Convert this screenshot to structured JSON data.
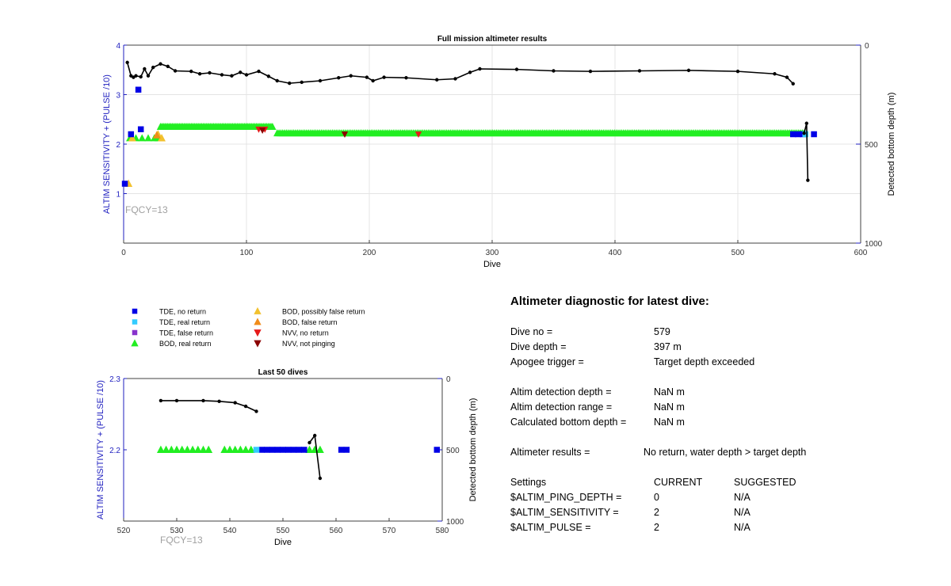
{
  "colors": {
    "tde_no_return": "#0000e6",
    "tde_real_return": "#33ccff",
    "tde_false_return": "#8833cc",
    "bod_real_return": "#22ee22",
    "bod_possibly_false": "#f2c12e",
    "bod_false": "#f08c1a",
    "nvv_no_return": "#e61a1a",
    "nvv_not_pinging": "#8b0000",
    "depth_line": "#000000",
    "axis_left": "#1f1fbf",
    "fqcy_text": "#a0a0a0"
  },
  "legend": {
    "items": [
      {
        "label": "TDE, no return",
        "marker": "square",
        "color_key": "tde_no_return"
      },
      {
        "label": "TDE, real return",
        "marker": "square",
        "color_key": "tde_real_return"
      },
      {
        "label": "TDE, false return",
        "marker": "square",
        "color_key": "tde_false_return"
      },
      {
        "label": "BOD, real return",
        "marker": "triangle-up",
        "color_key": "bod_real_return"
      },
      {
        "label": "BOD, possibly false return",
        "marker": "triangle-up",
        "color_key": "bod_possibly_false"
      },
      {
        "label": "BOD, false return",
        "marker": "triangle-up",
        "color_key": "bod_false"
      },
      {
        "label": "NVV, no return",
        "marker": "triangle-down",
        "color_key": "nvv_no_return"
      },
      {
        "label": "NVV, not pinging",
        "marker": "triangle-down",
        "color_key": "nvv_not_pinging"
      }
    ]
  },
  "chart_data": [
    {
      "type": "scatter",
      "title": "Full mission altimeter results",
      "xlabel": "Dive",
      "ylabel": "ALTIM SENSITIVITY + (PULSE /10)",
      "y2label": "Detected bottom depth (m)",
      "annotation": "FQCY=13",
      "xlim": [
        0,
        600
      ],
      "ylim": [
        0,
        4
      ],
      "y2lim": [
        1000,
        0
      ],
      "xticks": [
        "0",
        "100",
        "200",
        "300",
        "400",
        "500",
        "600"
      ],
      "yticks": [
        "1",
        "2",
        "3",
        "4"
      ],
      "y2ticks": [
        "0",
        "500",
        "1000"
      ],
      "grid": true,
      "depth_line": [
        [
          3,
          3.65
        ],
        [
          6,
          3.38
        ],
        [
          8,
          3.35
        ],
        [
          10,
          3.38
        ],
        [
          14,
          3.36
        ],
        [
          17,
          3.52
        ],
        [
          20,
          3.38
        ],
        [
          24,
          3.55
        ],
        [
          30,
          3.62
        ],
        [
          36,
          3.57
        ],
        [
          42,
          3.48
        ],
        [
          55,
          3.47
        ],
        [
          62,
          3.42
        ],
        [
          70,
          3.44
        ],
        [
          80,
          3.4
        ],
        [
          88,
          3.38
        ],
        [
          95,
          3.45
        ],
        [
          100,
          3.4
        ],
        [
          110,
          3.47
        ],
        [
          118,
          3.37
        ],
        [
          125,
          3.28
        ],
        [
          135,
          3.23
        ],
        [
          145,
          3.25
        ],
        [
          160,
          3.28
        ],
        [
          175,
          3.34
        ],
        [
          185,
          3.38
        ],
        [
          198,
          3.35
        ],
        [
          203,
          3.28
        ],
        [
          212,
          3.35
        ],
        [
          230,
          3.34
        ],
        [
          255,
          3.3
        ],
        [
          270,
          3.32
        ],
        [
          282,
          3.45
        ],
        [
          290,
          3.52
        ],
        [
          320,
          3.51
        ],
        [
          350,
          3.48
        ],
        [
          380,
          3.47
        ],
        [
          420,
          3.48
        ],
        [
          460,
          3.49
        ],
        [
          500,
          3.47
        ],
        [
          530,
          3.42
        ],
        [
          540,
          3.35
        ],
        [
          545,
          3.22
        ]
      ],
      "depth_spike": [
        [
          554,
          2.22
        ],
        [
          556,
          2.42
        ],
        [
          557,
          1.27
        ]
      ],
      "bod_real": {
        "segments": [
          {
            "x": [
              5,
              10,
              15,
              20,
              25,
              28
            ],
            "y": 2.12
          },
          {
            "x_range": [
              30,
              122
            ],
            "step": 1.2,
            "y": 2.35
          },
          {
            "x_range": [
              125,
              555
            ],
            "step": 1.5,
            "y": 2.22
          }
        ]
      },
      "bod_possibly_false": [
        [
          4,
          1.2
        ],
        [
          7,
          2.12
        ],
        [
          28,
          2.2
        ],
        [
          31,
          2.12
        ]
      ],
      "bod_false": [
        [
          27,
          2.18
        ]
      ],
      "nvv_no_return": [
        [
          110,
          2.3
        ],
        [
          115,
          2.3
        ],
        [
          240,
          2.2
        ]
      ],
      "nvv_not_pinging": [
        [
          113,
          2.28
        ],
        [
          180,
          2.2
        ]
      ],
      "tde_no_return": [
        [
          1,
          1.2
        ],
        [
          6,
          2.2
        ],
        [
          12,
          3.1
        ],
        [
          14,
          2.3
        ],
        [
          545,
          2.2
        ],
        [
          549,
          2.2
        ],
        [
          553,
          2.2
        ],
        [
          562,
          2.2
        ]
      ],
      "tde_real_return": [
        [
          555,
          2.2
        ]
      ],
      "tde_false_return": []
    },
    {
      "type": "scatter",
      "title": "Last 50 dives",
      "xlabel": "Dive",
      "ylabel": "ALTIM SENSITIVITY + (PULSE /10)",
      "y2label": "Detected bottom depth (m)",
      "annotation": "FQCY=13",
      "xlim": [
        520,
        580
      ],
      "ylim": [
        2.1,
        2.3
      ],
      "y2lim": [
        1000,
        0
      ],
      "xticks": [
        "520",
        "530",
        "540",
        "550",
        "560",
        "570",
        "580"
      ],
      "yticks": [
        "2.2",
        "2.3"
      ],
      "y2ticks": [
        "0",
        "500",
        "1000"
      ],
      "grid": false,
      "depth_line": [
        [
          527,
          2.269
        ],
        [
          530,
          2.269
        ],
        [
          535,
          2.269
        ],
        [
          538,
          2.268
        ],
        [
          541,
          2.266
        ],
        [
          543,
          2.261
        ],
        [
          545,
          2.254
        ]
      ],
      "depth_spike": [
        [
          555,
          2.21
        ],
        [
          556,
          2.22
        ],
        [
          557,
          2.16
        ]
      ],
      "bod_real": [
        [
          527,
          2.2
        ],
        [
          528,
          2.2
        ],
        [
          529,
          2.2
        ],
        [
          530,
          2.2
        ],
        [
          531,
          2.2
        ],
        [
          532,
          2.2
        ],
        [
          533,
          2.2
        ],
        [
          534,
          2.2
        ],
        [
          535,
          2.2
        ],
        [
          536,
          2.2
        ],
        [
          539,
          2.2
        ],
        [
          540,
          2.2
        ],
        [
          541,
          2.2
        ],
        [
          542,
          2.2
        ],
        [
          543,
          2.2
        ],
        [
          544,
          2.2
        ],
        [
          555,
          2.2
        ],
        [
          556,
          2.2
        ],
        [
          557,
          2.2
        ]
      ],
      "bod_possibly_false": [],
      "bod_false": [],
      "nvv_no_return": [],
      "nvv_not_pinging": [],
      "tde_no_return": [
        [
          546,
          2.2
        ],
        [
          547,
          2.2
        ],
        [
          548,
          2.2
        ],
        [
          549,
          2.2
        ],
        [
          550,
          2.2
        ],
        [
          551,
          2.2
        ],
        [
          552,
          2.2
        ],
        [
          553,
          2.2
        ],
        [
          554,
          2.2
        ],
        [
          561,
          2.2
        ],
        [
          562,
          2.2
        ],
        [
          579,
          2.2
        ]
      ],
      "tde_real_return": [
        [
          545,
          2.2
        ]
      ],
      "tde_false_return": []
    }
  ],
  "diagnostic": {
    "title": "Altimeter diagnostic for latest dive:",
    "rows": [
      {
        "label": "Dive no =",
        "value": "579"
      },
      {
        "label": "Dive depth =",
        "value": "397 m"
      },
      {
        "label": "Apogee trigger =",
        "value": "Target depth exceeded"
      },
      {
        "label": "Altim detection depth =",
        "value": "NaN m"
      },
      {
        "label": "Altim detection range =",
        "value": "NaN m"
      },
      {
        "label": "Calculated bottom depth =",
        "value": "NaN m"
      },
      {
        "label": "Altimeter results =",
        "value": "No return, water depth > target depth"
      }
    ],
    "settings_header": {
      "label": "Settings",
      "current": "CURRENT",
      "suggested": "SUGGESTED"
    },
    "settings": [
      {
        "label": "$ALTIM_PING_DEPTH =",
        "current": "0",
        "suggested": "N/A"
      },
      {
        "label": "$ALTIM_SENSITIVITY =",
        "current": "2",
        "suggested": "N/A"
      },
      {
        "label": "$ALTIM_PULSE =",
        "current": "2",
        "suggested": "N/A"
      }
    ]
  }
}
